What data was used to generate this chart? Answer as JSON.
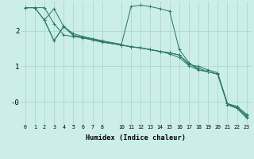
{
  "xlabel": "Humidex (Indice chaleur)",
  "bg_color": "#cceee8",
  "grid_color": "#aad8d0",
  "line_color": "#2d7a70",
  "xlim": [
    -0.5,
    23.5
  ],
  "ylim": [
    -0.62,
    2.82
  ],
  "yticks": [
    0,
    1,
    2
  ],
  "ytick_labels": [
    "-0",
    "1",
    "2"
  ],
  "xticks": [
    0,
    1,
    2,
    3,
    4,
    5,
    6,
    7,
    8,
    10,
    11,
    12,
    13,
    14,
    15,
    16,
    17,
    18,
    19,
    20,
    21,
    22,
    23
  ],
  "line1_x": [
    0,
    1,
    2,
    3,
    4,
    5,
    6,
    7,
    8,
    10,
    11,
    12,
    13,
    14,
    15,
    16,
    17,
    18,
    19,
    20,
    21,
    22,
    23
  ],
  "line1_y": [
    2.65,
    2.65,
    2.3,
    2.62,
    2.12,
    1.92,
    1.84,
    1.78,
    1.72,
    1.62,
    2.68,
    2.72,
    2.68,
    2.62,
    2.55,
    1.48,
    1.1,
    0.9,
    0.85,
    0.78,
    -0.05,
    -0.12,
    -0.35
  ],
  "line2_x": [
    0,
    1,
    2,
    3,
    4,
    5,
    6,
    7,
    8,
    10,
    11,
    12,
    13,
    14,
    15,
    16,
    17,
    18,
    19,
    20,
    21,
    22,
    23
  ],
  "line2_y": [
    2.65,
    2.65,
    2.3,
    1.72,
    2.12,
    1.87,
    1.8,
    1.74,
    1.68,
    1.6,
    1.55,
    1.52,
    1.47,
    1.42,
    1.38,
    1.32,
    1.08,
    0.95,
    0.85,
    0.78,
    -0.05,
    -0.15,
    -0.38
  ],
  "line3_x": [
    0,
    1,
    2,
    3,
    4,
    5,
    6,
    7,
    8,
    10,
    11,
    12,
    13,
    14,
    15,
    16,
    17,
    18,
    19,
    20,
    21,
    22,
    23
  ],
  "line3_y": [
    2.65,
    2.65,
    2.65,
    2.2,
    1.88,
    1.84,
    1.8,
    1.75,
    1.68,
    1.6,
    1.55,
    1.52,
    1.47,
    1.42,
    1.38,
    1.32,
    1.05,
    1.0,
    0.9,
    0.82,
    -0.05,
    -0.18,
    -0.42
  ],
  "line4_x": [
    2,
    3,
    4,
    5,
    6,
    7,
    8,
    10,
    11,
    12,
    13,
    14,
    15,
    16,
    17,
    18,
    19,
    20,
    21,
    22,
    23
  ],
  "line4_y": [
    2.3,
    1.72,
    2.12,
    1.87,
    1.82,
    1.76,
    1.7,
    1.6,
    1.55,
    1.52,
    1.47,
    1.42,
    1.35,
    1.25,
    1.02,
    0.9,
    0.85,
    0.78,
    -0.08,
    -0.18,
    -0.45
  ]
}
